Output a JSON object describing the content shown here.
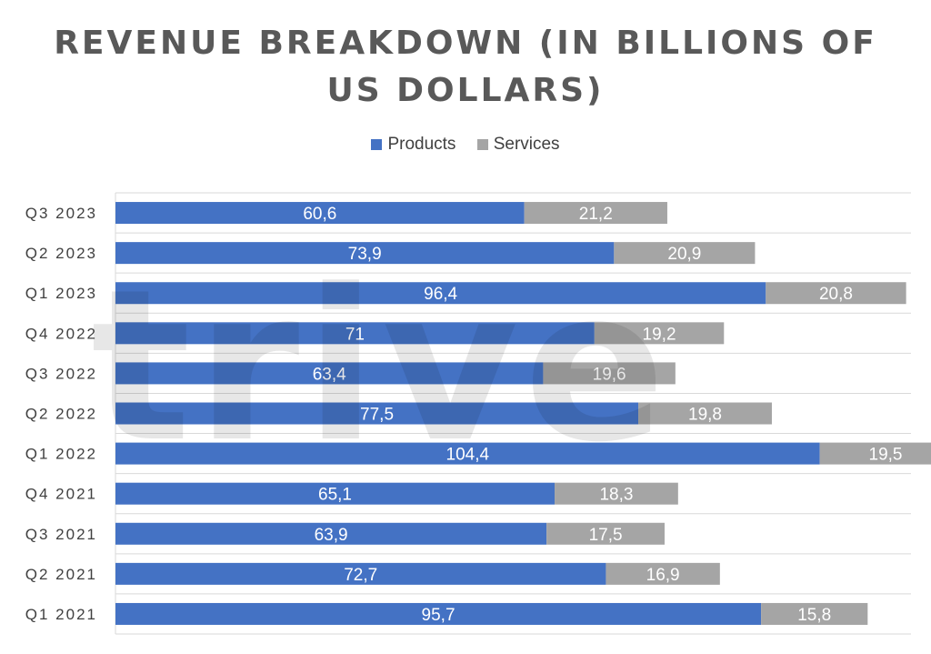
{
  "chart_data": {
    "type": "bar",
    "orientation": "horizontal",
    "stacked": true,
    "title_lines": [
      "REVENUE BREAKDOWN (IN BILLIONS OF",
      "US DOLLARS)"
    ],
    "categories": [
      "Q3 2023",
      "Q2 2023",
      "Q1 2023",
      "Q4 2022",
      "Q3 2022",
      "Q2 2022",
      "Q1 2022",
      "Q4 2021",
      "Q3 2021",
      "Q2 2021",
      "Q1 2021"
    ],
    "series": [
      {
        "name": "Products",
        "color": "#4472C4",
        "values": [
          60.6,
          73.9,
          96.4,
          71,
          63.4,
          77.5,
          104.4,
          65.1,
          63.9,
          72.7,
          95.7
        ],
        "labels": [
          "60,6",
          "73,9",
          "96,4",
          "71",
          "63,4",
          "77,5",
          "104,4",
          "65,1",
          "63,9",
          "72,7",
          "95,7"
        ]
      },
      {
        "name": "Services",
        "color": "#A5A5A5",
        "values": [
          21.2,
          20.9,
          20.8,
          19.2,
          19.6,
          19.8,
          19.5,
          18.3,
          17.5,
          16.9,
          15.8
        ],
        "labels": [
          "21,2",
          "20,9",
          "20,8",
          "19,2",
          "19,6",
          "19,8",
          "19,5",
          "18,3",
          "17,5",
          "16,9",
          "15,8"
        ]
      }
    ],
    "xlim": [
      0,
      140
    ],
    "legend_position": "top",
    "grid": true,
    "xlabel": "",
    "ylabel": ""
  },
  "watermark": {
    "text": "trive"
  }
}
